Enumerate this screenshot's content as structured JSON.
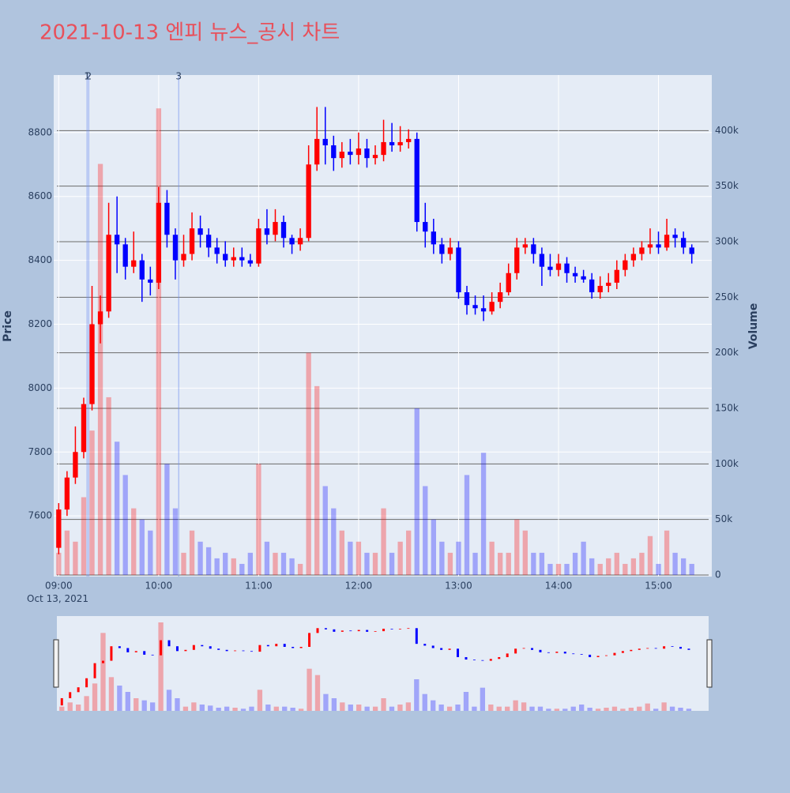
{
  "chart_data": {
    "type": "candlestick",
    "title": "2021-10-13 엔피 뉴스_공시 차트",
    "y_label": "Price",
    "y2_label": "Volume",
    "x_date_label": "Oct 13, 2021",
    "increasing_color": "#ff0000",
    "decreasing_color": "#0000ff",
    "x": [
      "09:00",
      "09:05",
      "09:10",
      "09:15",
      "09:20",
      "09:25",
      "09:30",
      "09:35",
      "09:40",
      "09:45",
      "09:50",
      "09:55",
      "10:00",
      "10:05",
      "10:10",
      "10:15",
      "10:20",
      "10:25",
      "10:30",
      "10:35",
      "10:40",
      "10:45",
      "10:50",
      "10:55",
      "11:00",
      "11:05",
      "11:10",
      "11:15",
      "11:20",
      "11:25",
      "11:30",
      "11:35",
      "11:40",
      "11:45",
      "11:50",
      "11:55",
      "12:00",
      "12:05",
      "12:10",
      "12:15",
      "12:20",
      "12:25",
      "12:30",
      "12:35",
      "12:40",
      "12:45",
      "12:50",
      "12:55",
      "13:00",
      "13:05",
      "13:10",
      "13:15",
      "13:20",
      "13:25",
      "13:30",
      "13:35",
      "13:40",
      "13:45",
      "13:50",
      "13:55",
      "14:00",
      "14:05",
      "14:10",
      "14:15",
      "14:20",
      "14:25",
      "14:30",
      "14:35",
      "14:40",
      "14:45",
      "14:50",
      "14:55",
      "15:00",
      "15:05",
      "15:10",
      "15:15",
      "15:20"
    ],
    "open": [
      7500,
      7620,
      7720,
      7800,
      7950,
      8200,
      8240,
      8480,
      8450,
      8380,
      8400,
      8340,
      8330,
      8580,
      8480,
      8400,
      8420,
      8500,
      8480,
      8440,
      8420,
      8400,
      8410,
      8400,
      8390,
      8500,
      8480,
      8520,
      8470,
      8450,
      8470,
      8700,
      8780,
      8760,
      8720,
      8740,
      8730,
      8750,
      8720,
      8730,
      8770,
      8760,
      8770,
      8780,
      8520,
      8490,
      8450,
      8420,
      8440,
      8300,
      8260,
      8250,
      8240,
      8270,
      8300,
      8360,
      8440,
      8450,
      8420,
      8380,
      8370,
      8390,
      8360,
      8350,
      8340,
      8300,
      8320,
      8330,
      8370,
      8400,
      8420,
      8440,
      8450,
      8440,
      8480,
      8470,
      8440
    ],
    "high": [
      7640,
      7740,
      7880,
      7970,
      8320,
      8290,
      8580,
      8600,
      8470,
      8490,
      8420,
      8380,
      8630,
      8620,
      8500,
      8480,
      8550,
      8540,
      8500,
      8470,
      8460,
      8440,
      8440,
      8420,
      8530,
      8560,
      8560,
      8540,
      8480,
      8500,
      8760,
      8880,
      8880,
      8790,
      8770,
      8780,
      8800,
      8780,
      8760,
      8840,
      8830,
      8820,
      8810,
      8800,
      8580,
      8530,
      8470,
      8470,
      8460,
      8320,
      8290,
      8290,
      8300,
      8330,
      8390,
      8470,
      8470,
      8470,
      8440,
      8420,
      8420,
      8410,
      8380,
      8370,
      8360,
      8350,
      8360,
      8400,
      8420,
      8440,
      8460,
      8500,
      8490,
      8530,
      8500,
      8490,
      8450
    ],
    "low": [
      7480,
      7600,
      7700,
      7780,
      7930,
      8140,
      8220,
      8360,
      8340,
      8360,
      8270,
      8290,
      8310,
      8440,
      8340,
      8380,
      8400,
      8440,
      8410,
      8390,
      8380,
      8380,
      8380,
      8380,
      8380,
      8450,
      8460,
      8440,
      8420,
      8430,
      8460,
      8680,
      8700,
      8680,
      8690,
      8700,
      8700,
      8690,
      8700,
      8710,
      8740,
      8740,
      8750,
      8490,
      8440,
      8420,
      8390,
      8400,
      8280,
      8230,
      8230,
      8210,
      8230,
      8250,
      8290,
      8340,
      8420,
      8390,
      8320,
      8350,
      8350,
      8330,
      8330,
      8330,
      8280,
      8280,
      8300,
      8310,
      8350,
      8380,
      8400,
      8420,
      8420,
      8430,
      8440,
      8420,
      8390
    ],
    "close": [
      7620,
      7720,
      7800,
      7950,
      8200,
      8240,
      8480,
      8450,
      8380,
      8400,
      8340,
      8330,
      8580,
      8480,
      8400,
      8420,
      8500,
      8480,
      8440,
      8420,
      8400,
      8410,
      8400,
      8390,
      8500,
      8480,
      8520,
      8470,
      8450,
      8470,
      8700,
      8780,
      8760,
      8720,
      8740,
      8730,
      8750,
      8720,
      8730,
      8770,
      8760,
      8770,
      8780,
      8520,
      8490,
      8450,
      8420,
      8440,
      8300,
      8260,
      8250,
      8240,
      8270,
      8300,
      8360,
      8440,
      8450,
      8420,
      8380,
      8370,
      8390,
      8360,
      8350,
      8340,
      8300,
      8320,
      8330,
      8370,
      8400,
      8420,
      8440,
      8450,
      8440,
      8480,
      8470,
      8440,
      8420
    ],
    "volume": [
      20000,
      40000,
      30000,
      70000,
      130000,
      370000,
      160000,
      120000,
      90000,
      60000,
      50000,
      40000,
      420000,
      100000,
      60000,
      20000,
      40000,
      30000,
      25000,
      15000,
      20000,
      15000,
      10000,
      20000,
      100000,
      30000,
      20000,
      20000,
      15000,
      10000,
      200000,
      170000,
      80000,
      60000,
      40000,
      30000,
      30000,
      20000,
      20000,
      60000,
      20000,
      30000,
      40000,
      150000,
      80000,
      50000,
      30000,
      20000,
      30000,
      90000,
      20000,
      110000,
      30000,
      20000,
      20000,
      50000,
      40000,
      20000,
      20000,
      10000,
      10000,
      10000,
      20000,
      30000,
      15000,
      10000,
      15000,
      20000,
      10000,
      15000,
      20000,
      35000,
      10000,
      40000,
      20000,
      15000,
      10000
    ],
    "xlim": [
      "08:57",
      "15:32"
    ],
    "xticks": [
      "09:00",
      "10:00",
      "11:00",
      "12:00",
      "13:00",
      "14:00",
      "15:00"
    ],
    "ylim": [
      7410,
      8980
    ],
    "yticks": [
      7600,
      7800,
      8000,
      8200,
      8400,
      8600,
      8800
    ],
    "y2lim": [
      0,
      450000
    ],
    "y2ticks": [
      {
        "value": 0,
        "label": "0"
      },
      {
        "value": 50000,
        "label": "50k"
      },
      {
        "value": 100000,
        "label": "100k"
      },
      {
        "value": 150000,
        "label": "150k"
      },
      {
        "value": 200000,
        "label": "200k"
      },
      {
        "value": 250000,
        "label": "250k"
      },
      {
        "value": 300000,
        "label": "300k"
      },
      {
        "value": 350000,
        "label": "350k"
      },
      {
        "value": 400000,
        "label": "400k"
      }
    ],
    "news": [
      {
        "x": "09:17",
        "label": "1"
      },
      {
        "x": "09:18",
        "label": "2"
      },
      {
        "x": "10:12",
        "label": "3"
      }
    ]
  }
}
